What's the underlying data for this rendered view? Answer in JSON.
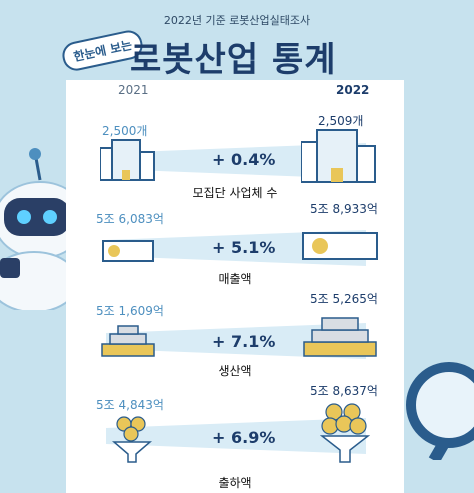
{
  "header": {
    "subtitle": "2022년 기준 로봇산업실태조사",
    "badge": "한눈에 보는",
    "title": "로봇산업 통계"
  },
  "years": {
    "left": "2021",
    "right": "2022"
  },
  "rows": [
    {
      "left_value": "2,500개",
      "right_value": "2,509개",
      "change": "+ 0.4%",
      "label": "모집단 사업체 수",
      "icon": "building-icon"
    },
    {
      "left_value": "5조 6,083억",
      "right_value": "5조 8,933억",
      "change": "+ 5.1%",
      "label": "매출액",
      "icon": "banknote-icon"
    },
    {
      "left_value": "5조 1,609억",
      "right_value": "5조 5,265억",
      "change": "+ 7.1%",
      "label": "생산액",
      "icon": "gold-bars-icon"
    },
    {
      "left_value": "5조 4,843억",
      "right_value": "5조 8,637억",
      "change": "+ 6.9%",
      "label": "출하액",
      "icon": "coin-funnel-icon"
    }
  ],
  "colors": {
    "background": "#c7e2ee",
    "title": "#1d3d6b",
    "accent": "#4d8fbf",
    "band": "#d9ecf6",
    "gold": "#e9c659"
  }
}
